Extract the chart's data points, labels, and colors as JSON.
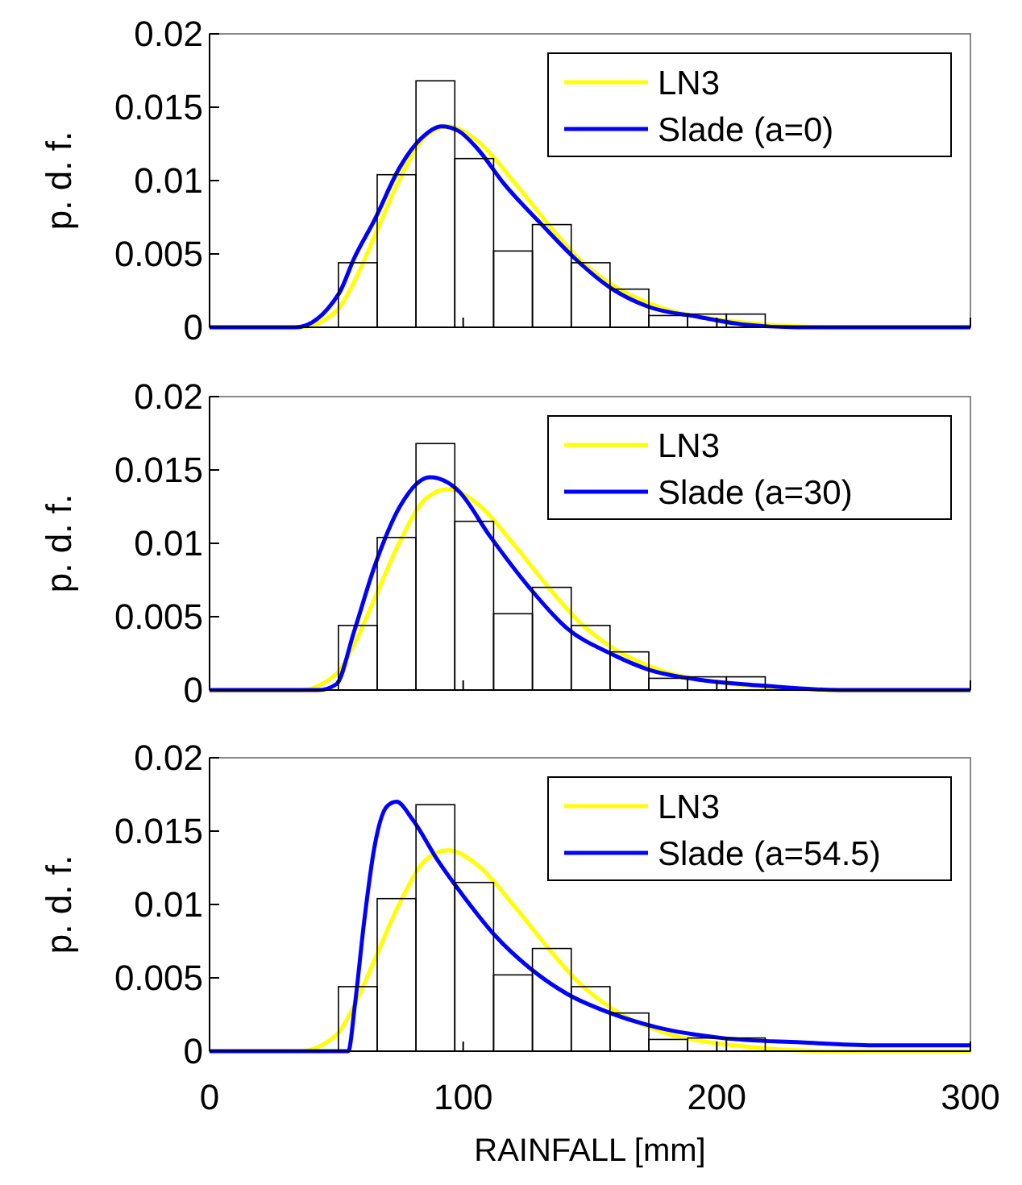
{
  "chart_data": [
    {
      "type": "histogram",
      "ylabel": "p. d. f.",
      "bins": [
        50.8,
        66.1,
        81.4,
        96.7,
        112,
        127.3,
        142.6,
        157.9,
        173.2,
        188.5,
        203.8,
        219.1
      ],
      "values": [
        0.0044,
        0.0104,
        0.0168,
        0.0115,
        0.0052,
        0.007,
        0.0044,
        0.0026,
        0.0008,
        0.0009,
        0.0009
      ],
      "color": "#000000",
      "xlim": [
        0,
        300
      ],
      "xticks": [
        0,
        100,
        200,
        300
      ],
      "ylim": [
        0,
        0.02
      ],
      "yticks": [
        0,
        0.005,
        0.01,
        0.015,
        0.02
      ],
      "tick_labels": "y",
      "legend": "top right",
      "grid": false,
      "series": [
        {
          "type": "line",
          "name": "LN3",
          "color": "#ffff00",
          "x": [
            0,
            35.6,
            50,
            57,
            65,
            75,
            85,
            94,
            105.5,
            121,
            133.6,
            146,
            161.5,
            177,
            202,
            248,
            300
          ],
          "values": [
            0,
            0,
            0.0011,
            0.0031,
            0.0062,
            0.0101,
            0.013,
            0.0137,
            0.0127,
            0.0097,
            0.007,
            0.0046,
            0.0026,
            0.0014,
            0.0005,
            0,
            0
          ]
        },
        {
          "type": "line",
          "name": "Slade (a=0)",
          "color": "#0000ff",
          "x": [
            0,
            34,
            51,
            57,
            65,
            75,
            83,
            91.5,
            98,
            105.5,
            116,
            131,
            144,
            158,
            173,
            193,
            210,
            231,
            300
          ],
          "values": [
            0,
            0,
            0.0023,
            0.0047,
            0.0073,
            0.0109,
            0.0128,
            0.0137,
            0.0134,
            0.0122,
            0.0098,
            0.007,
            0.0047,
            0.0027,
            0.0014,
            0.0007,
            0.0002,
            0,
            0
          ]
        }
      ]
    },
    {
      "type": "histogram",
      "ylabel": "p. d. f.",
      "bins": [
        50.8,
        66.1,
        81.4,
        96.7,
        112,
        127.3,
        142.6,
        157.9,
        173.2,
        188.5,
        203.8,
        219.1
      ],
      "values": [
        0.0044,
        0.0104,
        0.0168,
        0.0115,
        0.0052,
        0.007,
        0.0044,
        0.0026,
        0.0008,
        0.0009,
        0.0009
      ],
      "color": "#000000",
      "xlim": [
        0,
        300
      ],
      "xticks": [
        0,
        100,
        200,
        300
      ],
      "ylim": [
        0,
        0.02
      ],
      "yticks": [
        0,
        0.005,
        0.01,
        0.015,
        0.02
      ],
      "tick_labels": "y",
      "legend": "top right",
      "grid": false,
      "series": [
        {
          "type": "line",
          "name": "LN3",
          "color": "#ffff00",
          "x": [
            0,
            35.6,
            50,
            57,
            65,
            75,
            85,
            94,
            105.5,
            121,
            133.6,
            146,
            161.5,
            177,
            202,
            248,
            300
          ],
          "values": [
            0,
            0,
            0.0011,
            0.0031,
            0.0062,
            0.0101,
            0.013,
            0.0137,
            0.0127,
            0.0097,
            0.007,
            0.0046,
            0.0026,
            0.0014,
            0.0005,
            0,
            0
          ]
        },
        {
          "type": "line",
          "name": "Slade (a=30)",
          "color": "#0000ff",
          "x": [
            0,
            43,
            50,
            57,
            65,
            75,
            87,
            98,
            110.5,
            126,
            141,
            158,
            173,
            193,
            218,
            248,
            300
          ],
          "values": [
            0,
            0,
            0.0004,
            0.004,
            0.0084,
            0.0125,
            0.0145,
            0.0136,
            0.0105,
            0.007,
            0.0042,
            0.0025,
            0.0014,
            0.0007,
            0.0003,
            0,
            0
          ]
        }
      ]
    },
    {
      "type": "histogram",
      "ylabel": "p. d. f.",
      "xlabel": "RAINFALL [mm]",
      "bins": [
        50.8,
        66.1,
        81.4,
        96.7,
        112,
        127.3,
        142.6,
        157.9,
        173.2,
        188.5,
        203.8,
        219.1
      ],
      "values": [
        0.0044,
        0.0104,
        0.0168,
        0.0115,
        0.0052,
        0.007,
        0.0044,
        0.0026,
        0.0008,
        0.0009,
        0.0009
      ],
      "color": "#000000",
      "xlim": [
        0,
        300
      ],
      "xticks": [
        0,
        100,
        200,
        300
      ],
      "ylim": [
        0,
        0.02
      ],
      "yticks": [
        0,
        0.005,
        0.01,
        0.015,
        0.02
      ],
      "legend": "top right",
      "grid": false,
      "series": [
        {
          "type": "line",
          "name": "LN3",
          "color": "#ffff00",
          "x": [
            0,
            35.6,
            50,
            57,
            65,
            75,
            85,
            94,
            105.5,
            121,
            133.6,
            146,
            161.5,
            177,
            202,
            248,
            300
          ],
          "values": [
            0,
            0,
            0.0011,
            0.0031,
            0.0062,
            0.0101,
            0.013,
            0.0137,
            0.0127,
            0.0097,
            0.007,
            0.0046,
            0.0026,
            0.0014,
            0.0005,
            0,
            0
          ]
        },
        {
          "type": "line",
          "name": "Slade (a=54.5)",
          "color": "#0000ff",
          "x": [
            0,
            54.7,
            57.2,
            61,
            65,
            70,
            73.7,
            80,
            90,
            100.4,
            113,
            126,
            141,
            158,
            177,
            202,
            233,
            262,
            300
          ],
          "values": [
            0,
            0,
            0.003,
            0.0089,
            0.0139,
            0.0167,
            0.017,
            0.0158,
            0.013,
            0.0105,
            0.0078,
            0.0057,
            0.0039,
            0.0026,
            0.0016,
            0.0009,
            0.0006,
            0.0004,
            0.0004
          ]
        }
      ]
    }
  ]
}
